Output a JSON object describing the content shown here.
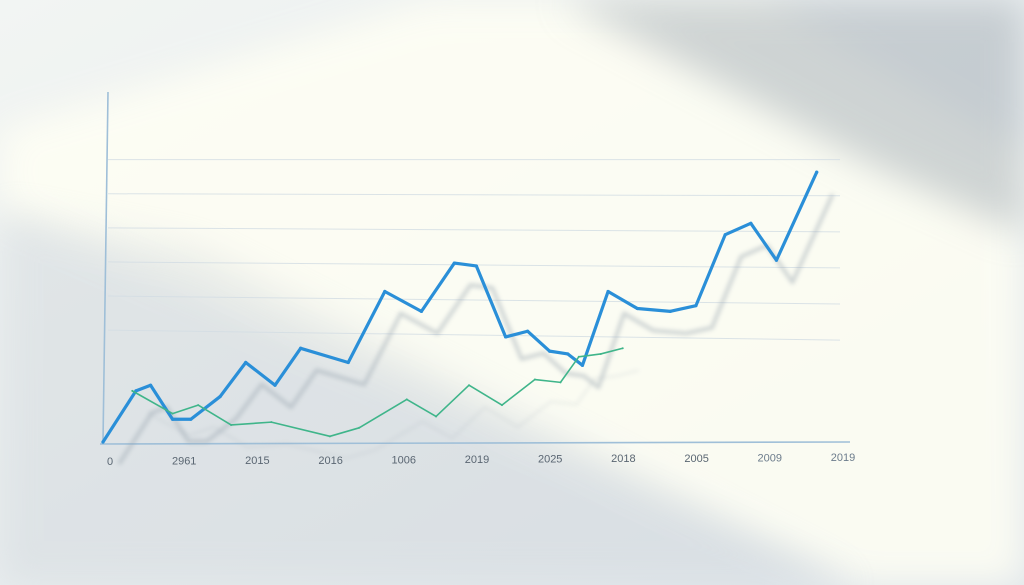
{
  "chart_data": {
    "type": "line",
    "title": "",
    "xlabel": "",
    "ylabel": "",
    "tick_labels": [
      "0",
      "2961",
      "2015",
      "2016",
      "1006",
      "2019",
      "2025",
      "2018",
      "2005",
      "2009",
      "2019"
    ],
    "x": [
      0,
      1,
      2,
      3,
      4,
      5,
      6,
      7,
      8,
      9,
      10
    ],
    "ylim": [
      0,
      100
    ],
    "grid": true,
    "legend": "none",
    "series": [
      {
        "color": "#2a8fd8",
        "x": [
          0,
          0.45,
          0.65,
          0.95,
          1.2,
          1.6,
          1.95,
          2.35,
          2.7,
          3.35,
          3.85,
          4.35,
          4.8,
          5.1,
          5.5,
          5.8,
          6.1,
          6.35,
          6.55,
          6.9,
          7.3,
          7.75,
          8.1,
          8.5,
          8.85,
          9.2,
          9.75
        ],
        "y": [
          0,
          18,
          20,
          8,
          8,
          16,
          28,
          20,
          33,
          28,
          53,
          46,
          63,
          62,
          37,
          39,
          32,
          31,
          27,
          53,
          47,
          46,
          48,
          73,
          77,
          64,
          95
        ]
      },
      {
        "color": "#3fb58a",
        "x": [
          0.4,
          0.95,
          1.3,
          1.75,
          2.3,
          3.1,
          3.5,
          4.15,
          4.55,
          5.0,
          5.45,
          5.9,
          6.25,
          6.5,
          6.8,
          7.1
        ],
        "y": [
          18,
          10,
          13,
          6,
          7,
          2,
          5,
          15,
          9,
          20,
          13,
          22,
          21,
          30,
          31,
          33
        ]
      }
    ]
  }
}
